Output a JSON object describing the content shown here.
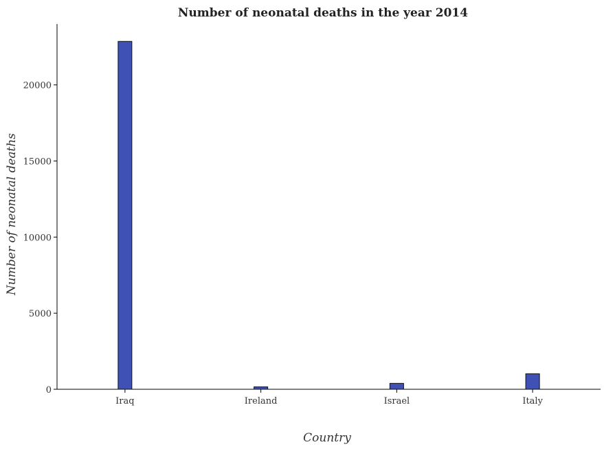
{
  "chart_data": {
    "type": "bar",
    "title": "Number of neonatal deaths in the year 2014",
    "xlabel": "Country",
    "ylabel": "Number of neonatal deaths",
    "categories": [
      "Iraq",
      "Ireland",
      "Israel",
      "Italy"
    ],
    "values": [
      22860,
      160,
      390,
      1020
    ],
    "ylim": [
      0,
      24000
    ],
    "yticks": [
      0,
      5000,
      10000,
      15000,
      20000
    ],
    "ytick_labels": [
      "0",
      "5000",
      "10000",
      "15000",
      "20000"
    ],
    "grid": false,
    "legend": "none",
    "colors": {
      "bar_fill": "#3f51b5",
      "bar_stroke": "#111111",
      "axis": "#000000",
      "text": "#333333"
    }
  }
}
